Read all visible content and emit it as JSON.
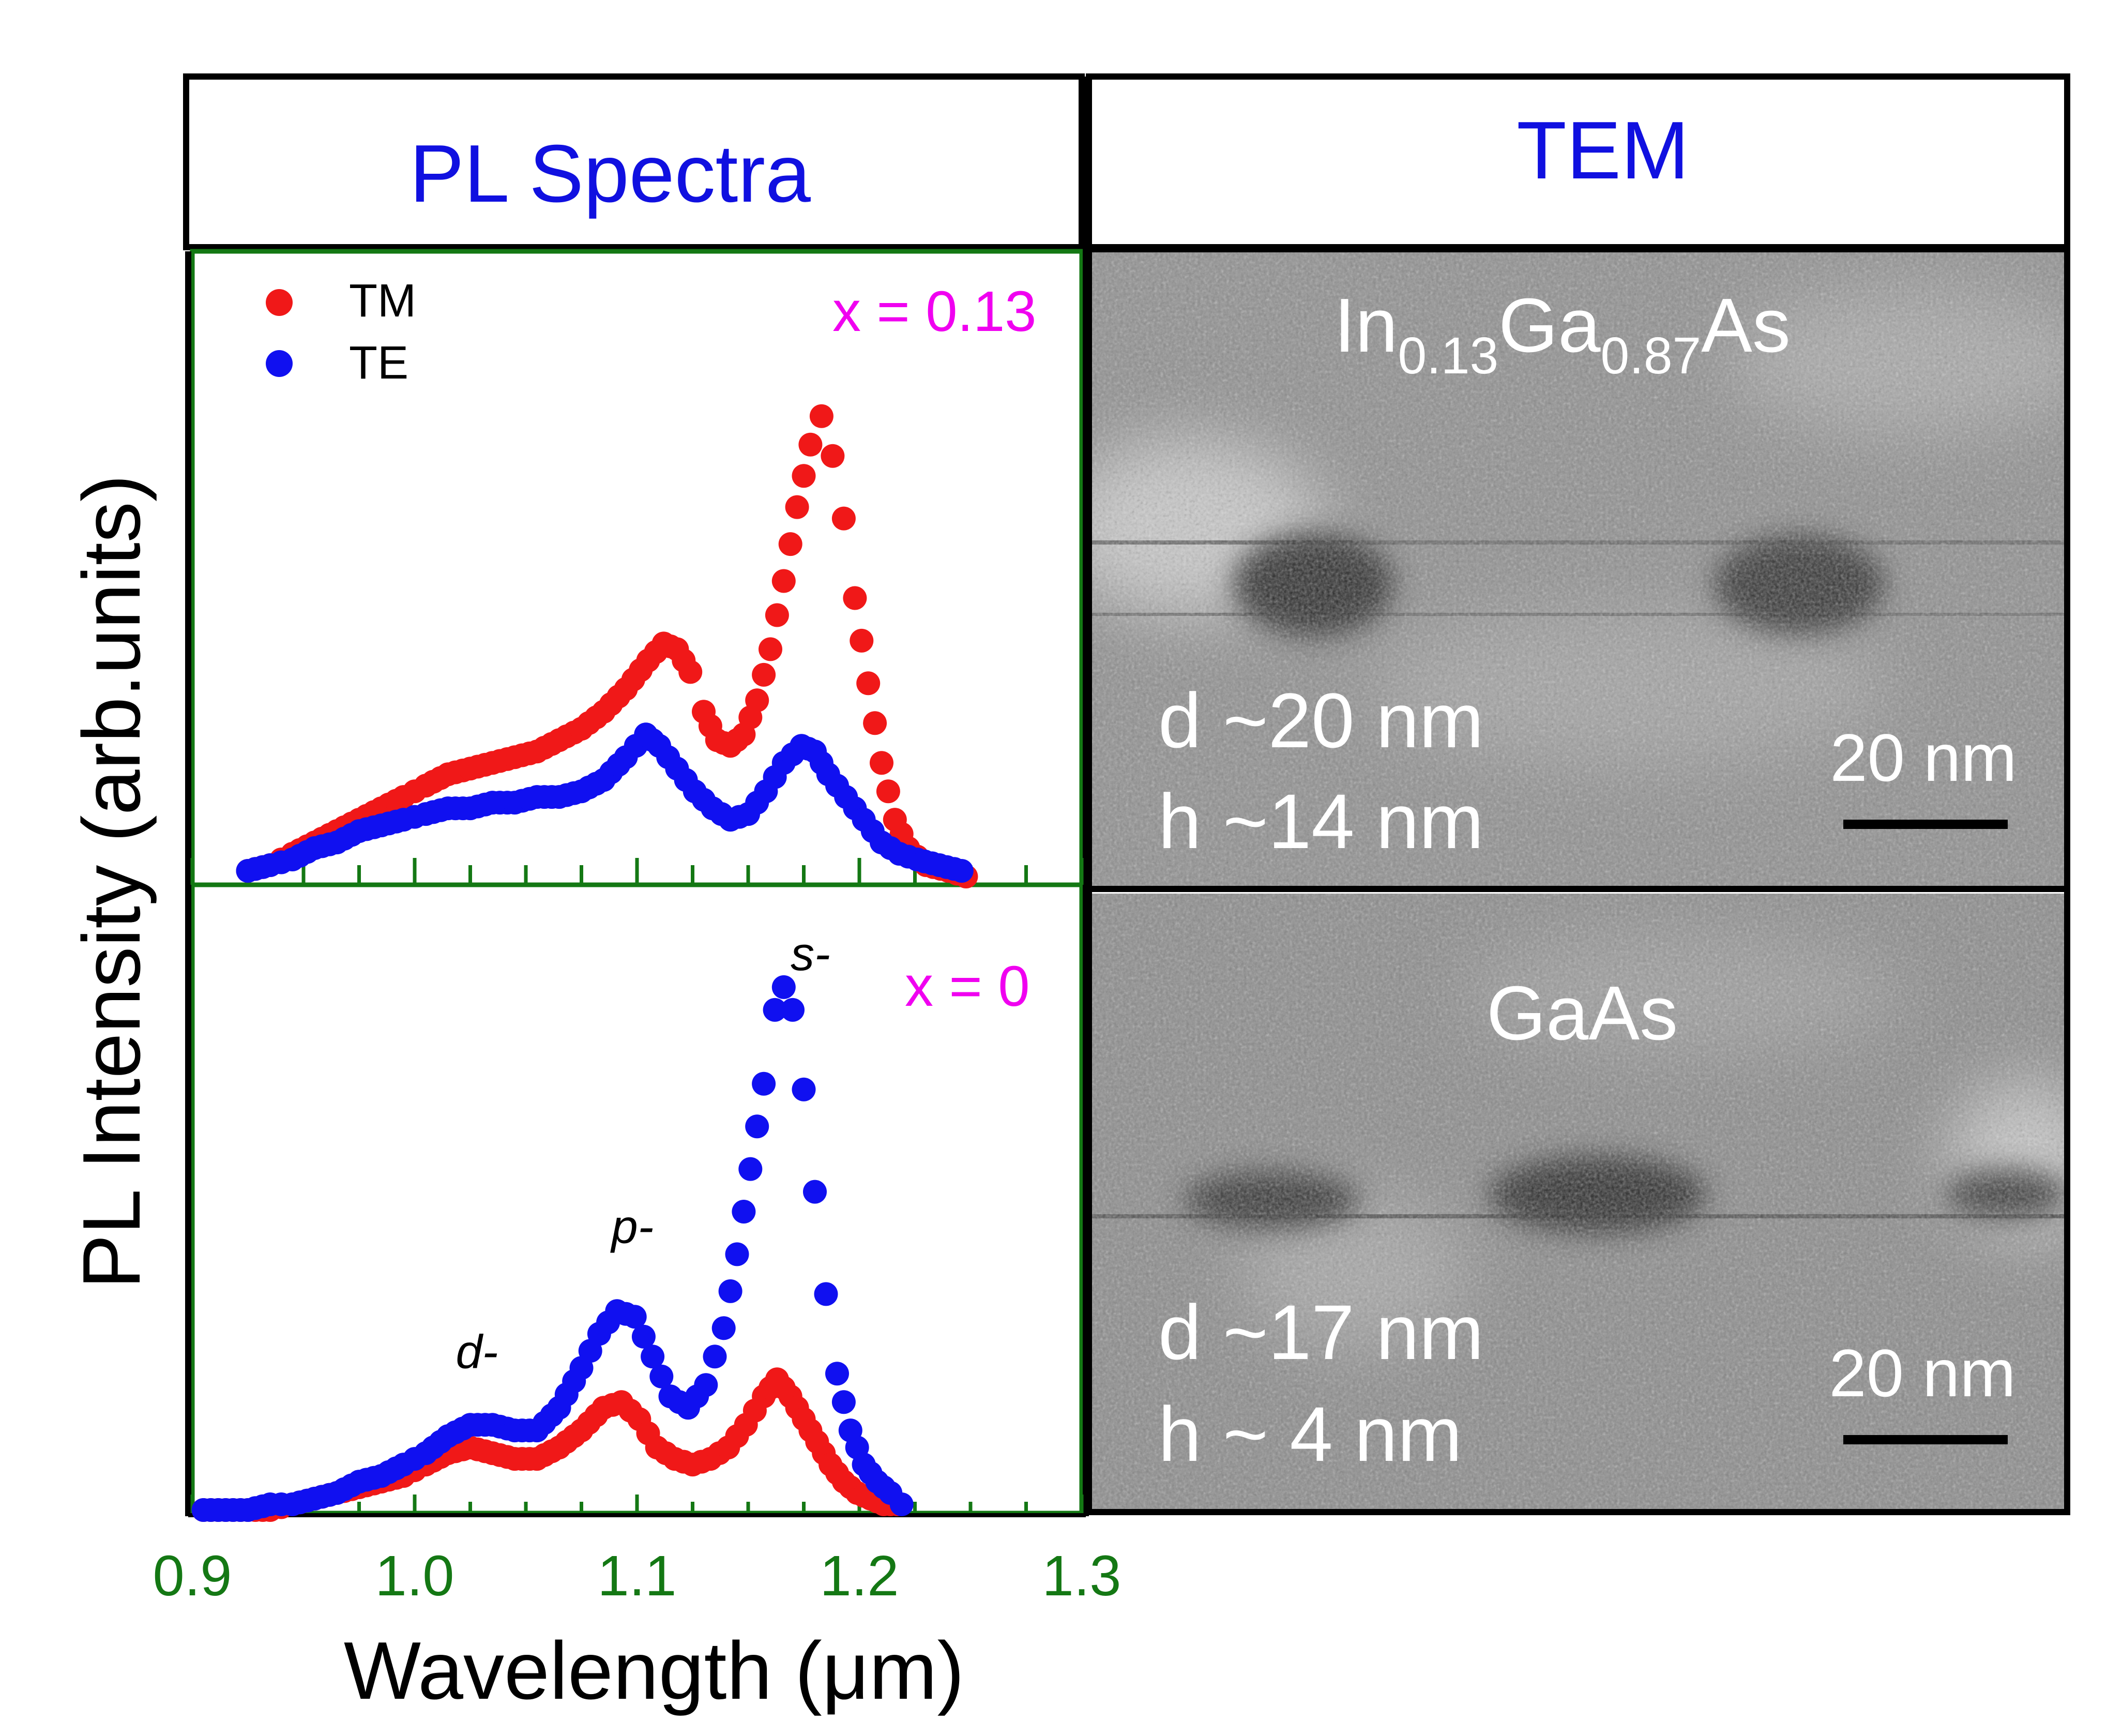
{
  "headers": {
    "left": "PL Spectra",
    "right": "TEM"
  },
  "colors": {
    "header_text": "#1010e0",
    "tm": "#f01818",
    "te": "#1010f0",
    "composition": "#f000f0",
    "axis_green": "#147814",
    "frame": "#000000"
  },
  "legend": {
    "tm": "TM",
    "te": "TE"
  },
  "tem": {
    "top": {
      "material": {
        "p1": "In",
        "s1": "0.13",
        "p2": "Ga",
        "s2": "0.87",
        "p3": "As"
      },
      "d": "d ~20 nm",
      "h": "h ~14 nm",
      "scale": "20 nm"
    },
    "bottom": {
      "material": "GaAs",
      "d": "d ~17 nm",
      "h": "h ~ 4 nm",
      "scale": "20 nm"
    }
  },
  "chart_data": [
    {
      "type": "scatter",
      "panel": "top",
      "annotation": "x = 0.13",
      "xlabel": "Wavelength (μm)",
      "ylabel": "PL Intensity (arb.units)",
      "xlim": [
        0.9,
        1.3
      ],
      "ylim": [
        0,
        1.0
      ],
      "x_ticks": [
        0.9,
        1.0,
        1.1,
        1.2,
        1.3
      ],
      "legend_position": "top-left",
      "series": [
        {
          "name": "TM",
          "color": "#f01818",
          "points": [
            [
              0.925,
              0.01
            ],
            [
              0.935,
              0.02
            ],
            [
              0.945,
              0.04
            ],
            [
              0.955,
              0.06
            ],
            [
              0.965,
              0.08
            ],
            [
              0.975,
              0.1
            ],
            [
              0.985,
              0.12
            ],
            [
              0.995,
              0.14
            ],
            [
              1.005,
              0.16
            ],
            [
              1.015,
              0.18
            ],
            [
              1.025,
              0.19
            ],
            [
              1.035,
              0.2
            ],
            [
              1.045,
              0.21
            ],
            [
              1.055,
              0.22
            ],
            [
              1.065,
              0.24
            ],
            [
              1.075,
              0.26
            ],
            [
              1.085,
              0.29
            ],
            [
              1.095,
              0.33
            ],
            [
              1.105,
              0.38
            ],
            [
              1.112,
              0.41
            ],
            [
              1.118,
              0.4
            ],
            [
              1.124,
              0.36
            ],
            [
              1.13,
              0.29
            ],
            [
              1.136,
              0.24
            ],
            [
              1.142,
              0.23
            ],
            [
              1.148,
              0.25
            ],
            [
              1.154,
              0.31
            ],
            [
              1.16,
              0.4
            ],
            [
              1.166,
              0.52
            ],
            [
              1.172,
              0.65
            ],
            [
              1.178,
              0.76
            ],
            [
              1.183,
              0.81
            ],
            [
              1.188,
              0.74
            ],
            [
              1.193,
              0.63
            ],
            [
              1.198,
              0.49
            ],
            [
              1.204,
              0.34
            ],
            [
              1.21,
              0.2
            ],
            [
              1.216,
              0.1
            ],
            [
              1.222,
              0.05
            ],
            [
              1.23,
              0.02
            ],
            [
              1.24,
              0.01
            ],
            [
              1.248,
              0.0
            ]
          ]
        },
        {
          "name": "TE",
          "color": "#1010f0",
          "points": [
            [
              0.925,
              0.01
            ],
            [
              0.935,
              0.02
            ],
            [
              0.945,
              0.03
            ],
            [
              0.955,
              0.05
            ],
            [
              0.965,
              0.06
            ],
            [
              0.975,
              0.08
            ],
            [
              0.985,
              0.09
            ],
            [
              0.995,
              0.1
            ],
            [
              1.005,
              0.11
            ],
            [
              1.015,
              0.12
            ],
            [
              1.025,
              0.12
            ],
            [
              1.035,
              0.13
            ],
            [
              1.045,
              0.13
            ],
            [
              1.055,
              0.14
            ],
            [
              1.065,
              0.14
            ],
            [
              1.075,
              0.15
            ],
            [
              1.085,
              0.17
            ],
            [
              1.095,
              0.21
            ],
            [
              1.104,
              0.25
            ],
            [
              1.11,
              0.23
            ],
            [
              1.118,
              0.19
            ],
            [
              1.126,
              0.15
            ],
            [
              1.134,
              0.12
            ],
            [
              1.142,
              0.1
            ],
            [
              1.15,
              0.11
            ],
            [
              1.158,
              0.15
            ],
            [
              1.166,
              0.2
            ],
            [
              1.174,
              0.23
            ],
            [
              1.18,
              0.22
            ],
            [
              1.186,
              0.18
            ],
            [
              1.194,
              0.14
            ],
            [
              1.202,
              0.1
            ],
            [
              1.21,
              0.06
            ],
            [
              1.218,
              0.04
            ],
            [
              1.226,
              0.03
            ],
            [
              1.236,
              0.02
            ],
            [
              1.246,
              0.01
            ]
          ]
        }
      ]
    },
    {
      "type": "scatter",
      "panel": "bottom",
      "annotation": "x = 0",
      "xlim": [
        0.9,
        1.3
      ],
      "ylim": [
        0,
        1.0
      ],
      "peak_labels": [
        {
          "text": "d-",
          "x": 1.028,
          "y": 0.25
        },
        {
          "text": "p-",
          "x": 1.098,
          "y": 0.47
        },
        {
          "text": "s-",
          "x": 1.178,
          "y": 0.95
        }
      ],
      "series": [
        {
          "name": "TM",
          "color": "#f01818",
          "points": [
            [
              0.905,
              0.0
            ],
            [
              0.915,
              0.0
            ],
            [
              0.925,
              0.0
            ],
            [
              0.935,
              0.0
            ],
            [
              0.945,
              0.01
            ],
            [
              0.955,
              0.02
            ],
            [
              0.965,
              0.03
            ],
            [
              0.975,
              0.04
            ],
            [
              0.985,
              0.05
            ],
            [
              0.995,
              0.06
            ],
            [
              1.005,
              0.08
            ],
            [
              1.015,
              0.1
            ],
            [
              1.025,
              0.11
            ],
            [
              1.035,
              0.1
            ],
            [
              1.045,
              0.09
            ],
            [
              1.055,
              0.09
            ],
            [
              1.065,
              0.11
            ],
            [
              1.075,
              0.14
            ],
            [
              1.085,
              0.18
            ],
            [
              1.093,
              0.19
            ],
            [
              1.101,
              0.16
            ],
            [
              1.109,
              0.11
            ],
            [
              1.117,
              0.09
            ],
            [
              1.125,
              0.08
            ],
            [
              1.133,
              0.09
            ],
            [
              1.141,
              0.11
            ],
            [
              1.149,
              0.15
            ],
            [
              1.157,
              0.2
            ],
            [
              1.163,
              0.23
            ],
            [
              1.169,
              0.2
            ],
            [
              1.175,
              0.16
            ],
            [
              1.181,
              0.12
            ],
            [
              1.187,
              0.08
            ],
            [
              1.193,
              0.05
            ],
            [
              1.199,
              0.03
            ],
            [
              1.205,
              0.02
            ],
            [
              1.211,
              0.01
            ],
            [
              1.217,
              0.01
            ]
          ]
        },
        {
          "name": "TE",
          "color": "#1010f0",
          "points": [
            [
              0.905,
              0.0
            ],
            [
              0.915,
              0.0
            ],
            [
              0.925,
              0.0
            ],
            [
              0.935,
              0.01
            ],
            [
              0.945,
              0.01
            ],
            [
              0.955,
              0.02
            ],
            [
              0.965,
              0.03
            ],
            [
              0.975,
              0.05
            ],
            [
              0.985,
              0.06
            ],
            [
              0.995,
              0.08
            ],
            [
              1.005,
              0.1
            ],
            [
              1.015,
              0.13
            ],
            [
              1.025,
              0.15
            ],
            [
              1.035,
              0.15
            ],
            [
              1.045,
              0.14
            ],
            [
              1.055,
              0.14
            ],
            [
              1.065,
              0.18
            ],
            [
              1.075,
              0.25
            ],
            [
              1.083,
              0.31
            ],
            [
              1.091,
              0.35
            ],
            [
              1.099,
              0.34
            ],
            [
              1.107,
              0.27
            ],
            [
              1.115,
              0.2
            ],
            [
              1.123,
              0.18
            ],
            [
              1.131,
              0.22
            ],
            [
              1.139,
              0.32
            ],
            [
              1.145,
              0.45
            ],
            [
              1.151,
              0.6
            ],
            [
              1.157,
              0.75
            ],
            [
              1.162,
              0.88
            ],
            [
              1.166,
              0.92
            ],
            [
              1.17,
              0.88
            ],
            [
              1.175,
              0.74
            ],
            [
              1.18,
              0.56
            ],
            [
              1.185,
              0.38
            ],
            [
              1.19,
              0.24
            ],
            [
              1.196,
              0.14
            ],
            [
              1.202,
              0.08
            ],
            [
              1.208,
              0.05
            ],
            [
              1.214,
              0.03
            ],
            [
              1.219,
              0.01
            ]
          ]
        }
      ]
    }
  ]
}
